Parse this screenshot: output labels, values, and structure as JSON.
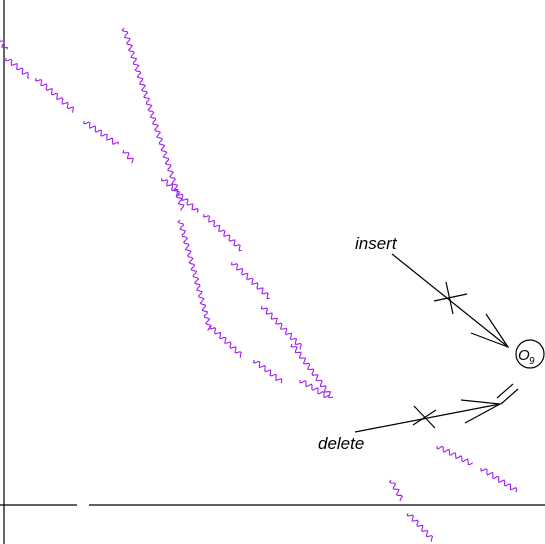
{
  "diagram": {
    "labels": {
      "insert": "insert",
      "delete": "delete"
    },
    "node": {
      "letter": "O",
      "subscript": "9"
    },
    "colors": {
      "ink": "#000000",
      "wave": "#a020f0",
      "background": "#ffffff"
    }
  }
}
